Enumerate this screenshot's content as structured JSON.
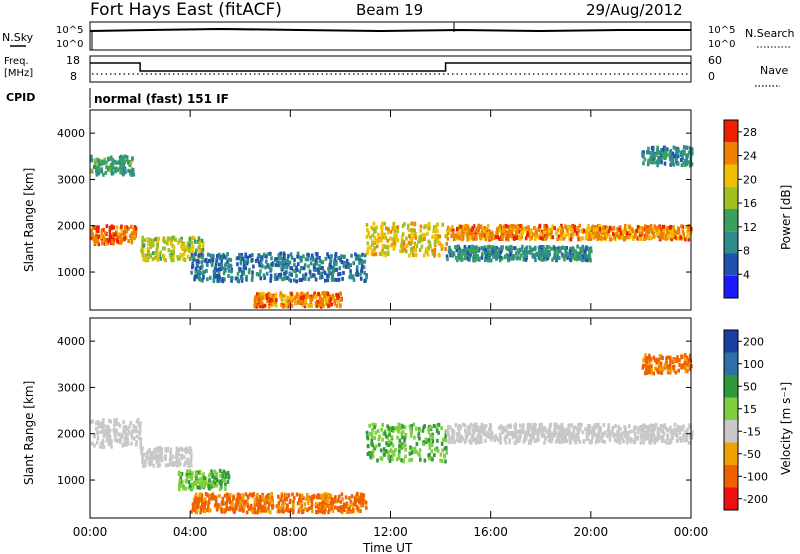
{
  "header": {
    "station": "Fort Hays East (fitACF)",
    "beam": "Beam 19",
    "date": "29/Aug/2012"
  },
  "strips": {
    "nsky_label": "N.Sky",
    "nsearch_label": "N.Search",
    "noise_ticks": [
      "10^5",
      "10^0"
    ],
    "freq_label_1": "Freq.",
    "freq_label_2": "[MHz]",
    "freq_ticks": [
      "18",
      "8"
    ],
    "nave_label": "Nave",
    "nave_ticks": [
      "60",
      "0"
    ],
    "cpid_label": "CPID",
    "cpid_text": "normal (fast) 151 IF",
    "freq_segments": [
      {
        "start": 0.0,
        "end": 2.0,
        "level": "high"
      },
      {
        "start": 2.0,
        "end": 14.2,
        "level": "low"
      },
      {
        "start": 14.2,
        "end": 24.0,
        "level": "high"
      }
    ]
  },
  "chart_data": [
    {
      "type": "heatmap",
      "panel": "power",
      "ylabel": "Slant Range [km]",
      "xlabel": "Time UT",
      "x_ticks": [
        "00:00",
        "04:00",
        "08:00",
        "12:00",
        "16:00",
        "20:00",
        "00:00"
      ],
      "x_range_hours": [
        0,
        24
      ],
      "y_ticks": [
        1000,
        2000,
        3000,
        4000
      ],
      "y_range_km": [
        180,
        4500
      ],
      "colorbar": {
        "label": "Power [dB]",
        "ticks": [
          4,
          8,
          12,
          16,
          20,
          24,
          28
        ],
        "range": [
          0,
          30
        ],
        "colors": [
          "#1a1aff",
          "#2050b0",
          "#2f8c8c",
          "#3aa060",
          "#a0c020",
          "#f0c000",
          "#f08000",
          "#ee2000"
        ]
      },
      "features": [
        {
          "t0": 0.0,
          "t1": 1.8,
          "range_center_km": 1800,
          "width_km": 400,
          "power_db": 26
        },
        {
          "t0": 0.0,
          "t1": 1.7,
          "range_center_km": 3300,
          "width_km": 400,
          "power_db": 12
        },
        {
          "t0": 2.0,
          "t1": 4.5,
          "range_center_km": 1500,
          "width_km": 500,
          "power_db": 18
        },
        {
          "t0": 4.0,
          "t1": 11.0,
          "range_center_km": 1100,
          "width_km": 600,
          "power_db": 8
        },
        {
          "t0": 6.5,
          "t1": 10.0,
          "range_center_km": 400,
          "width_km": 300,
          "power_db": 24
        },
        {
          "t0": 11.0,
          "t1": 14.2,
          "range_center_km": 1700,
          "width_km": 700,
          "power_db": 20
        },
        {
          "t0": 14.2,
          "t1": 24.0,
          "range_center_km": 1850,
          "width_km": 300,
          "power_db": 24
        },
        {
          "t0": 14.2,
          "t1": 20.0,
          "range_center_km": 1400,
          "width_km": 300,
          "power_db": 10
        },
        {
          "t0": 22.0,
          "t1": 24.0,
          "range_center_km": 3500,
          "width_km": 400,
          "power_db": 10
        }
      ]
    },
    {
      "type": "heatmap",
      "panel": "velocity",
      "ylabel": "Slant Range [km]",
      "xlabel": "Time UT",
      "x_ticks": [
        "00:00",
        "04:00",
        "08:00",
        "12:00",
        "16:00",
        "20:00",
        "00:00"
      ],
      "x_range_hours": [
        0,
        24
      ],
      "y_ticks": [
        1000,
        2000,
        3000,
        4000
      ],
      "y_range_km": [
        180,
        4500
      ],
      "colorbar": {
        "label": "Velocity [m s⁻¹]",
        "ticks": [
          200,
          100,
          50,
          15,
          -15,
          -50,
          -100,
          -200
        ],
        "colors": [
          "#1a3fa0",
          "#2f6fa8",
          "#2f9a3c",
          "#7ed040",
          "#c8c8c8",
          "#f0a000",
          "#f06000",
          "#ee1010"
        ]
      },
      "features": [
        {
          "t0": 0.0,
          "t1": 2.0,
          "range_center_km": 2000,
          "width_km": 600,
          "velocity": 0
        },
        {
          "t0": 2.0,
          "t1": 4.0,
          "range_center_km": 1500,
          "width_km": 400,
          "velocity": 0
        },
        {
          "t0": 3.5,
          "t1": 5.5,
          "range_center_km": 1000,
          "width_km": 400,
          "velocity": 30
        },
        {
          "t0": 4.0,
          "t1": 11.0,
          "range_center_km": 500,
          "width_km": 400,
          "velocity": -40
        },
        {
          "t0": 11.0,
          "t1": 14.2,
          "range_center_km": 1800,
          "width_km": 800,
          "velocity": 30
        },
        {
          "t0": 14.2,
          "t1": 24.0,
          "range_center_km": 2000,
          "width_km": 400,
          "velocity": 0
        },
        {
          "t0": 22.0,
          "t1": 24.0,
          "range_center_km": 3500,
          "width_km": 400,
          "velocity": -40
        }
      ]
    }
  ]
}
